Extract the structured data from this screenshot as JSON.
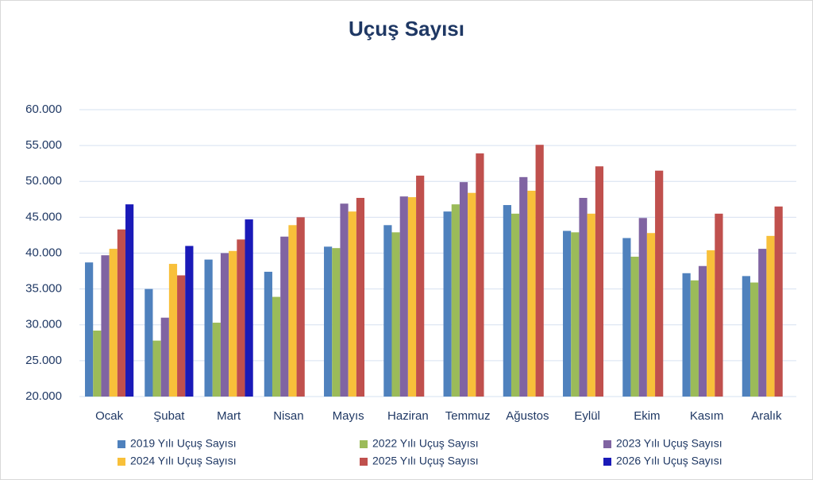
{
  "chart_data": {
    "type": "bar",
    "title": "Uçuş Sayısı",
    "categories": [
      "Ocak",
      "Şubat",
      "Mart",
      "Nisan",
      "Mayıs",
      "Haziran",
      "Temmuz",
      "Ağustos",
      "Eylül",
      "Ekim",
      "Kasım",
      "Aralık"
    ],
    "series": [
      {
        "name": "2019 Yılı Uçuş Sayısı",
        "color": "#4f81bd",
        "values": [
          38700,
          35000,
          39100,
          37400,
          40900,
          43900,
          45800,
          46700,
          43100,
          42100,
          37200,
          36800
        ]
      },
      {
        "name": "2022 Yılı Uçuş Sayısı",
        "color": "#9bbb59",
        "values": [
          29200,
          27800,
          30300,
          33900,
          40700,
          42900,
          46800,
          45500,
          42900,
          39500,
          36200,
          35900
        ]
      },
      {
        "name": "2023 Yılı Uçuş Sayısı",
        "color": "#8064a2",
        "values": [
          39700,
          31000,
          40000,
          42300,
          46900,
          47900,
          49900,
          50600,
          47700,
          44900,
          38200,
          40600
        ]
      },
      {
        "name": "2024 Yılı Uçuş Sayısı",
        "color": "#f8c03a",
        "values": [
          40600,
          38500,
          40300,
          43900,
          45800,
          47800,
          48400,
          48700,
          45500,
          42800,
          40400,
          42400
        ]
      },
      {
        "name": "2025 Yılı Uçuş Sayısı",
        "color": "#c0504d",
        "values": [
          43300,
          36900,
          41900,
          45000,
          47700,
          50800,
          53900,
          55100,
          52100,
          51500,
          45500,
          46500
        ]
      },
      {
        "name": "2026 Yılı Uçuş Sayısı",
        "color": "#1a1ab8",
        "values": [
          46800,
          41000,
          44700,
          null,
          null,
          null,
          null,
          null,
          null,
          null,
          null,
          null
        ]
      }
    ],
    "ylim": [
      20000,
      60000
    ],
    "yticks": [
      {
        "value": 20000,
        "label": "20.000"
      },
      {
        "value": 25000,
        "label": "25.000"
      },
      {
        "value": 30000,
        "label": "30.000"
      },
      {
        "value": 35000,
        "label": "35.000"
      },
      {
        "value": 40000,
        "label": "40.000"
      },
      {
        "value": 45000,
        "label": "45.000"
      },
      {
        "value": 50000,
        "label": "50.000"
      },
      {
        "value": 55000,
        "label": "55.000"
      },
      {
        "value": 60000,
        "label": "60.000"
      }
    ],
    "grid": true
  }
}
